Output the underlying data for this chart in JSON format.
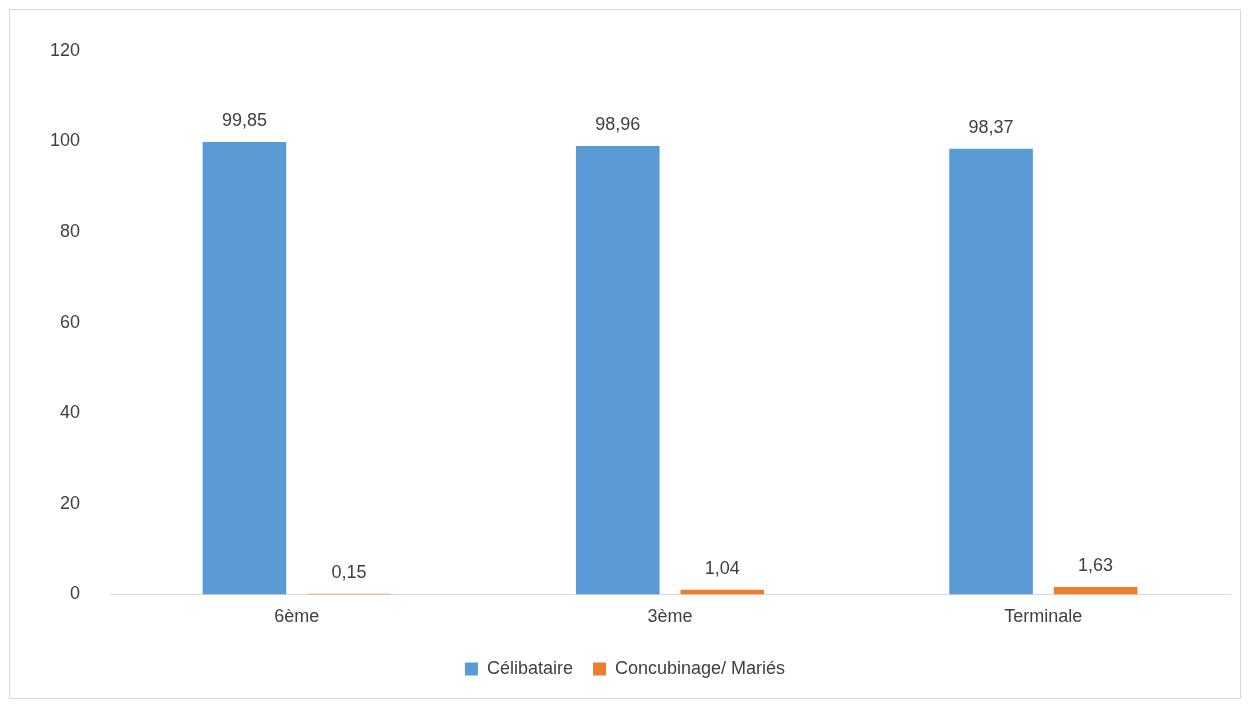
{
  "chart_data": {
    "type": "bar",
    "categories": [
      "6ème",
      "3ème",
      "Terminale"
    ],
    "series": [
      {
        "name": "Célibataire",
        "color": "#5b9bd5",
        "values": [
          99.85,
          98.96,
          98.37
        ],
        "value_labels": [
          "99,85",
          "98,96",
          "98,37"
        ]
      },
      {
        "name": "Concubinage/ Mariés",
        "color": "#ed7d31",
        "values": [
          0.15,
          1.04,
          1.63
        ],
        "value_labels": [
          "0,15",
          "1,04",
          "1,63"
        ]
      }
    ],
    "ylim": [
      0,
      120
    ],
    "yticks": [
      0,
      20,
      40,
      60,
      80,
      100,
      120
    ],
    "grid": false,
    "legend": "bottom"
  }
}
